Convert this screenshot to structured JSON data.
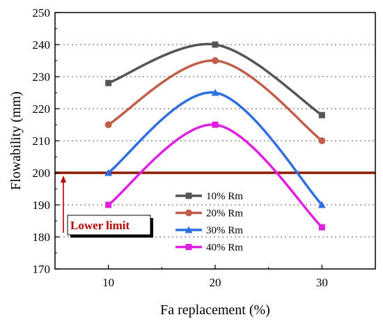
{
  "chart_data": {
    "type": "line",
    "xlabel": "Fa replacement (%)",
    "ylabel": "Flowability (mm)",
    "x": [
      10,
      20,
      30
    ],
    "xlim": [
      5,
      35
    ],
    "ylim": [
      170,
      250
    ],
    "xticks": [
      10,
      20,
      30
    ],
    "yticks": [
      170,
      180,
      190,
      200,
      210,
      220,
      230,
      240,
      250
    ],
    "grid": "horizontal dotted",
    "legend_position": "center-bottom",
    "series": [
      {
        "name": "10% Rm",
        "values": [
          228,
          240,
          218
        ],
        "color": "#555555",
        "marker": "square"
      },
      {
        "name": "20% Rm",
        "values": [
          215,
          235,
          210
        ],
        "color": "#c0604a",
        "marker": "circle"
      },
      {
        "name": "30% Rm",
        "values": [
          200,
          225,
          190
        ],
        "color": "#2f6fe0",
        "marker": "triangle"
      },
      {
        "name": "40% Rm",
        "values": [
          190,
          215,
          183
        ],
        "color": "#e020e0",
        "marker": "square"
      }
    ],
    "reference_line": {
      "value": 200,
      "color": "#8b1a00"
    },
    "annotation": {
      "text": "Lower limit",
      "color": "#b30000"
    }
  }
}
